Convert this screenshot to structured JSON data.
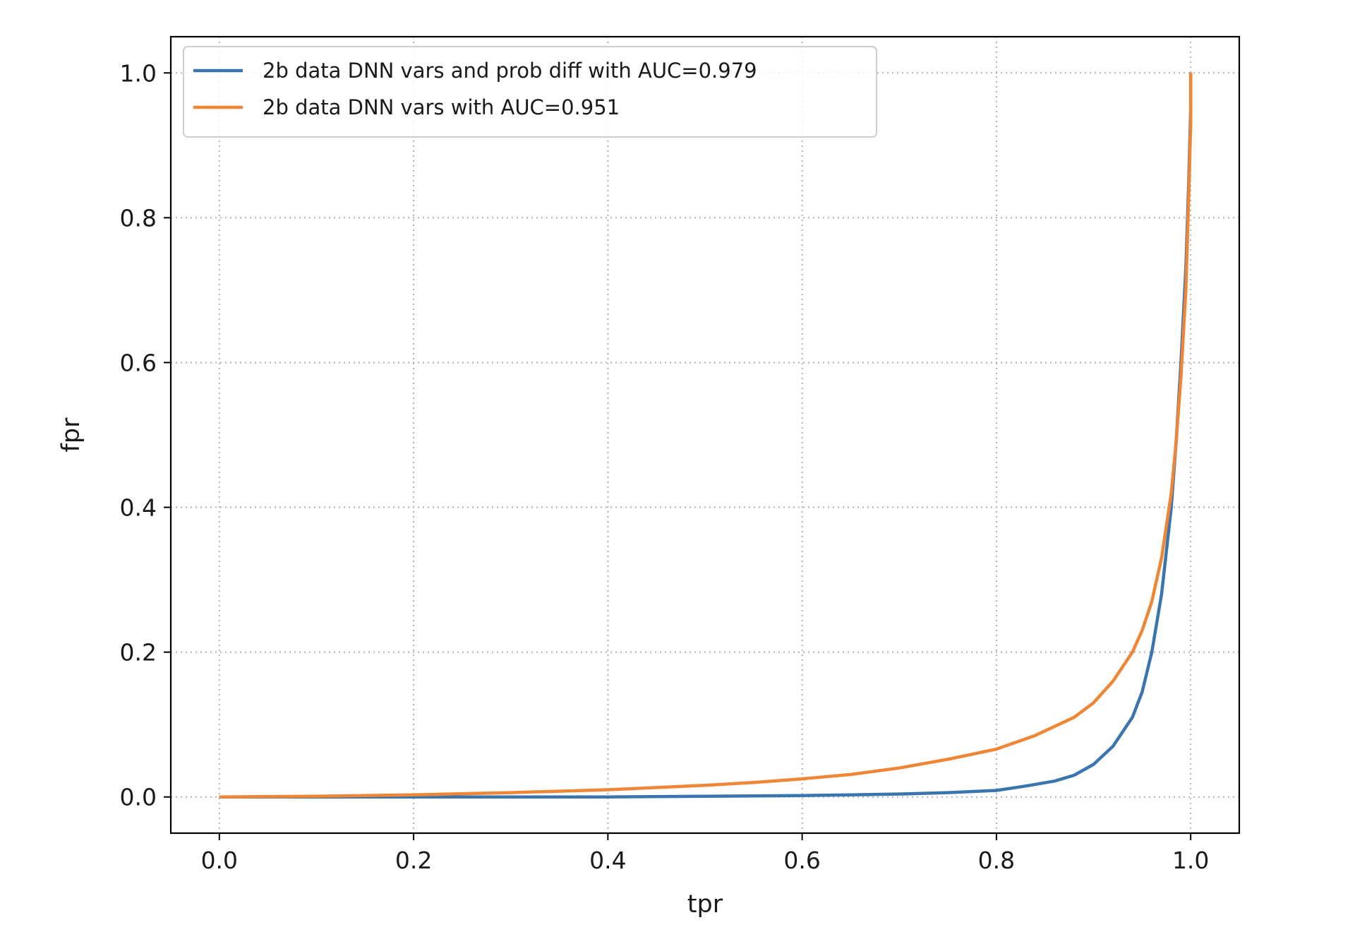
{
  "chart_data": {
    "type": "line",
    "title": "",
    "xlabel": "tpr",
    "ylabel": "fpr",
    "xlim": [
      -0.05,
      1.05
    ],
    "ylim": [
      -0.05,
      1.05
    ],
    "xticks": [
      0.0,
      0.2,
      0.4,
      0.6,
      0.8,
      1.0
    ],
    "yticks": [
      0.0,
      0.2,
      0.4,
      0.6,
      0.8,
      1.0
    ],
    "xtick_labels": [
      "0.0",
      "0.2",
      "0.4",
      "0.6",
      "0.8",
      "1.0"
    ],
    "ytick_labels": [
      "0.0",
      "0.2",
      "0.4",
      "0.6",
      "0.8",
      "1.0"
    ],
    "grid": true,
    "grid_style": "dotted",
    "legend_position": "top-left",
    "series": [
      {
        "name": "2b data DNN vars and prob diff with AUC=0.979",
        "color": "#3b75af",
        "x": [
          0.0,
          0.1,
          0.2,
          0.3,
          0.4,
          0.5,
          0.6,
          0.65,
          0.7,
          0.75,
          0.8,
          0.83,
          0.86,
          0.88,
          0.9,
          0.92,
          0.94,
          0.95,
          0.96,
          0.97,
          0.98,
          0.985,
          0.99,
          0.995,
          0.998,
          1.0,
          1.0
        ],
        "y": [
          0.0,
          0.0,
          0.0,
          0.0,
          0.0,
          0.001,
          0.002,
          0.003,
          0.004,
          0.006,
          0.009,
          0.015,
          0.022,
          0.03,
          0.045,
          0.07,
          0.11,
          0.145,
          0.2,
          0.28,
          0.4,
          0.49,
          0.6,
          0.73,
          0.85,
          0.95,
          1.0
        ]
      },
      {
        "name": "2b data DNN vars with AUC=0.951",
        "color": "#ef8636",
        "x": [
          0.0,
          0.1,
          0.2,
          0.3,
          0.4,
          0.5,
          0.55,
          0.6,
          0.65,
          0.7,
          0.75,
          0.8,
          0.84,
          0.88,
          0.9,
          0.92,
          0.94,
          0.95,
          0.96,
          0.97,
          0.98,
          0.985,
          0.99,
          0.995,
          0.998,
          1.0,
          1.0
        ],
        "y": [
          0.0,
          0.001,
          0.003,
          0.006,
          0.01,
          0.016,
          0.02,
          0.025,
          0.031,
          0.04,
          0.052,
          0.066,
          0.085,
          0.11,
          0.13,
          0.16,
          0.2,
          0.23,
          0.27,
          0.33,
          0.42,
          0.49,
          0.58,
          0.7,
          0.83,
          0.93,
          1.0
        ]
      }
    ]
  }
}
